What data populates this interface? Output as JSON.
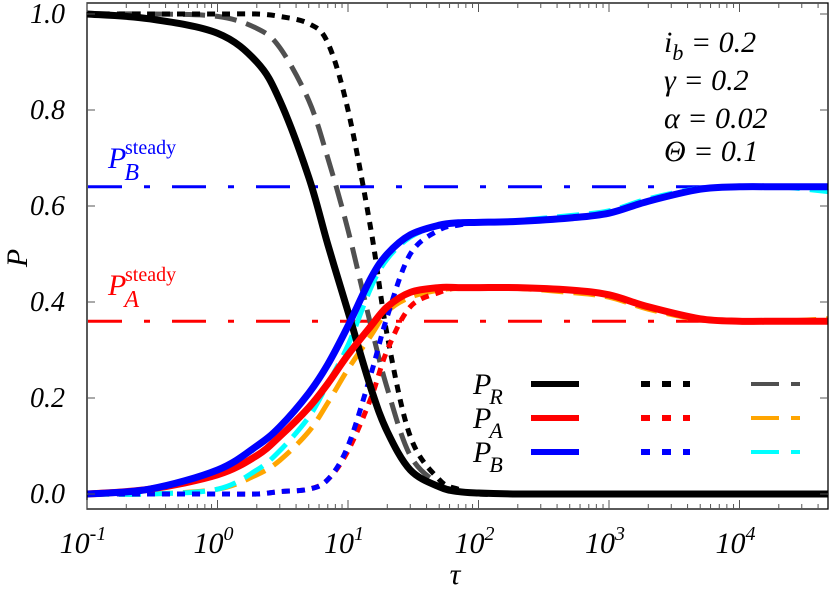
{
  "chart_data": {
    "type": "line",
    "title": "",
    "xlabel": "τ",
    "ylabel": "P",
    "xscale": "log",
    "xlim": [
      0.1,
      48000
    ],
    "ylim": [
      0.0,
      1.03
    ],
    "x_ticks": [
      {
        "value": 0.1,
        "base": "10",
        "exp": "-1"
      },
      {
        "value": 1,
        "base": "10",
        "exp": "0"
      },
      {
        "value": 10,
        "base": "10",
        "exp": "1"
      },
      {
        "value": 100,
        "base": "10",
        "exp": "2"
      },
      {
        "value": 1000,
        "base": "10",
        "exp": "3"
      },
      {
        "value": 10000,
        "base": "10",
        "exp": "4"
      }
    ],
    "y_ticks": [
      "0.0",
      "0.2",
      "0.4",
      "0.6",
      "0.8",
      "1.0"
    ],
    "y_tick_values": [
      0.0,
      0.2,
      0.4,
      0.6,
      0.8,
      1.0
    ],
    "grid": false,
    "parameters": [
      {
        "symbol": "i",
        "sub": "b",
        "value": "= 0.2"
      },
      {
        "symbol": "γ",
        "sub": "",
        "value": "= 0.2"
      },
      {
        "symbol": "α",
        "sub": "",
        "value": " = 0.02"
      },
      {
        "symbol": "Θ",
        "sub": "",
        "value": " = 0.1"
      }
    ],
    "annotations": [
      {
        "text": "P",
        "sub": "B",
        "sup": "steady",
        "color": "#0000ff",
        "y": 0.64
      },
      {
        "text": "P",
        "sub": "A",
        "sup": "steady",
        "color": "#ff0000",
        "y": 0.36
      }
    ],
    "reference_lines": [
      {
        "name": "P_B steady",
        "y": 0.64,
        "color": "#0000ff",
        "style": "dash-dot"
      },
      {
        "name": "P_A steady",
        "y": 0.36,
        "color": "#ff0000",
        "style": "dash-dot"
      }
    ],
    "legend": {
      "position": "lower right",
      "rows": [
        {
          "label": "P",
          "sub": "R",
          "colors": [
            "#000000",
            "#000000",
            "#505050"
          ]
        },
        {
          "label": "P",
          "sub": "A",
          "colors": [
            "#ff0000",
            "#ff0000",
            "#ffa500"
          ]
        },
        {
          "label": "P",
          "sub": "B",
          "colors": [
            "#0000ff",
            "#0000ff",
            "#00ffff"
          ]
        }
      ],
      "styles": [
        "solid",
        "dotted",
        "dashed"
      ]
    },
    "x": [
      0.1,
      0.3,
      1,
      2,
      3,
      5,
      7,
      10,
      15,
      20,
      30,
      50,
      70,
      100,
      200,
      500,
      1000,
      2000,
      5000,
      10000,
      20000,
      48000
    ],
    "series": [
      {
        "name": "P_R (solid)",
        "color": "#000000",
        "style": "solid",
        "values": [
          1.0,
          0.99,
          0.96,
          0.9,
          0.82,
          0.66,
          0.52,
          0.38,
          0.22,
          0.13,
          0.05,
          0.015,
          0.005,
          0.002,
          0.0,
          0.0,
          0.0,
          0.0,
          0.0,
          0.0,
          0.0,
          0.0
        ]
      },
      {
        "name": "P_A (solid)",
        "color": "#ff0000",
        "style": "solid",
        "values": [
          0.0,
          0.01,
          0.04,
          0.08,
          0.12,
          0.18,
          0.23,
          0.29,
          0.35,
          0.39,
          0.42,
          0.43,
          0.43,
          0.43,
          0.43,
          0.425,
          0.415,
          0.39,
          0.365,
          0.36,
          0.36,
          0.36
        ]
      },
      {
        "name": "P_B (solid)",
        "color": "#0000ff",
        "style": "solid",
        "values": [
          0.0,
          0.01,
          0.05,
          0.1,
          0.14,
          0.21,
          0.27,
          0.35,
          0.45,
          0.5,
          0.54,
          0.56,
          0.565,
          0.566,
          0.568,
          0.575,
          0.585,
          0.61,
          0.635,
          0.64,
          0.64,
          0.64
        ]
      },
      {
        "name": "P_R (dotted)",
        "color": "#000000",
        "style": "dotted",
        "values": [
          1.0,
          1.0,
          1.0,
          1.0,
          0.995,
          0.98,
          0.94,
          0.8,
          0.55,
          0.33,
          0.12,
          0.03,
          0.01,
          0.0,
          0.0,
          0.0,
          0.0,
          0.0,
          0.0,
          0.0,
          0.0,
          0.0
        ]
      },
      {
        "name": "P_A (dotted)",
        "color": "#ff0000",
        "style": "dotted",
        "values": [
          0.0,
          0.0,
          0.0,
          0.0,
          0.005,
          0.01,
          0.03,
          0.09,
          0.2,
          0.3,
          0.39,
          0.42,
          0.43,
          0.43,
          0.43,
          0.425,
          0.415,
          0.39,
          0.365,
          0.36,
          0.36,
          0.36
        ]
      },
      {
        "name": "P_B (dotted)",
        "color": "#0000ff",
        "style": "dotted",
        "values": [
          0.0,
          0.0,
          0.0,
          0.0,
          0.005,
          0.01,
          0.03,
          0.1,
          0.25,
          0.37,
          0.5,
          0.55,
          0.56,
          0.566,
          0.568,
          0.575,
          0.585,
          0.61,
          0.635,
          0.64,
          0.64,
          0.64
        ]
      },
      {
        "name": "P_R (dashed)",
        "color": "#505050",
        "style": "dashed",
        "values": [
          1.0,
          1.0,
          0.995,
          0.97,
          0.93,
          0.82,
          0.7,
          0.55,
          0.35,
          0.22,
          0.08,
          0.02,
          0.008,
          0.002,
          0.0,
          0.0,
          0.0,
          0.0,
          0.0,
          0.0,
          0.0,
          0.0
        ]
      },
      {
        "name": "P_A (dashed)",
        "color": "#ffa500",
        "style": "dashed",
        "values": [
          0.0,
          0.0,
          0.01,
          0.04,
          0.07,
          0.13,
          0.19,
          0.26,
          0.33,
          0.38,
          0.41,
          0.425,
          0.428,
          0.428,
          0.428,
          0.42,
          0.41,
          0.385,
          0.363,
          0.36,
          0.36,
          0.365
        ]
      },
      {
        "name": "P_B (dashed)",
        "color": "#00ffff",
        "style": "dashed",
        "values": [
          0.0,
          0.0,
          0.01,
          0.05,
          0.09,
          0.16,
          0.23,
          0.31,
          0.43,
          0.49,
          0.535,
          0.56,
          0.565,
          0.566,
          0.57,
          0.58,
          0.59,
          0.615,
          0.637,
          0.64,
          0.64,
          0.63
        ]
      }
    ]
  }
}
